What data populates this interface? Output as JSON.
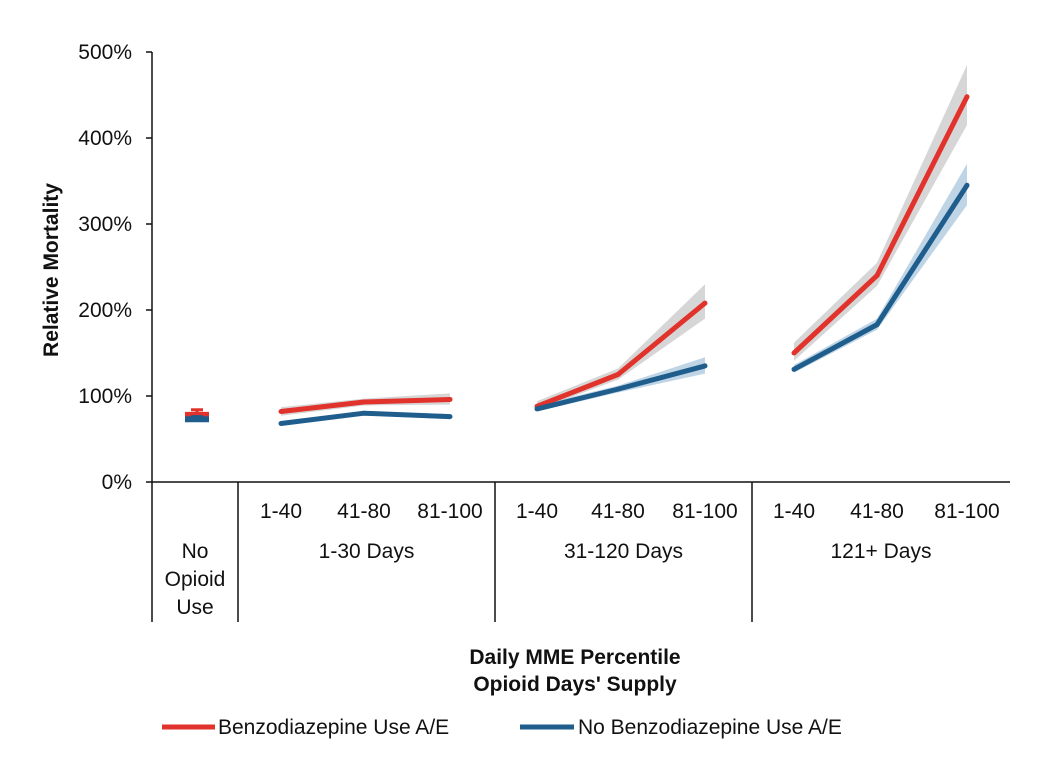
{
  "chart_data": {
    "type": "line",
    "title": "",
    "ylabel": "Relative Mortality",
    "xlabel_lines": [
      "Daily MME Percentile",
      "Opioid Days' Supply"
    ],
    "ylim": [
      0,
      500
    ],
    "y_ticks": [
      {
        "value": 0,
        "label": "0%"
      },
      {
        "value": 100,
        "label": "100%"
      },
      {
        "value": 200,
        "label": "200%"
      },
      {
        "value": 300,
        "label": "300%"
      },
      {
        "value": 400,
        "label": "400%"
      },
      {
        "value": 500,
        "label": "500%"
      }
    ],
    "groups": [
      {
        "label_lines": [
          "No",
          "Opioid",
          "Use"
        ],
        "categories": [
          ""
        ]
      },
      {
        "label_lines": [
          "1-30 Days"
        ],
        "categories": [
          "1-40",
          "41-80",
          "81-100"
        ]
      },
      {
        "label_lines": [
          "31-120 Days"
        ],
        "categories": [
          "1-40",
          "41-80",
          "81-100"
        ]
      },
      {
        "label_lines": [
          "121+ Days"
        ],
        "categories": [
          "1-40",
          "41-80",
          "81-100"
        ]
      }
    ],
    "series": [
      {
        "name": "Benzodiazepine Use A/E",
        "color": "#e1322b",
        "band_color": "#c8c8c8",
        "no_opioid": {
          "value": 78,
          "lower": 74,
          "upper": 84
        },
        "values": [
          [
            82,
            93,
            96
          ],
          [
            88,
            125,
            208
          ],
          [
            150,
            240,
            448
          ]
        ],
        "lower": [
          [
            77,
            89,
            90
          ],
          [
            84,
            119,
            190
          ],
          [
            141,
            228,
            415
          ]
        ],
        "upper": [
          [
            87,
            97,
            103
          ],
          [
            94,
            132,
            230
          ],
          [
            162,
            255,
            485
          ]
        ]
      },
      {
        "name": "No Benzodiazepine Use A/E",
        "color": "#1f5d8c",
        "band_color": "#a9c7dd",
        "no_opioid": {
          "value": 73,
          "lower": 70,
          "upper": 76
        },
        "values": [
          [
            68,
            80,
            76
          ],
          [
            85,
            108,
            135
          ],
          [
            131,
            183,
            345
          ]
        ],
        "lower": [
          [
            66,
            78,
            73
          ],
          [
            82,
            104,
            126
          ],
          [
            127,
            177,
            322
          ]
        ],
        "upper": [
          [
            71,
            82,
            79
          ],
          [
            89,
            112,
            145
          ],
          [
            136,
            190,
            370
          ]
        ]
      }
    ],
    "grid": false,
    "legend_position": "bottom"
  }
}
